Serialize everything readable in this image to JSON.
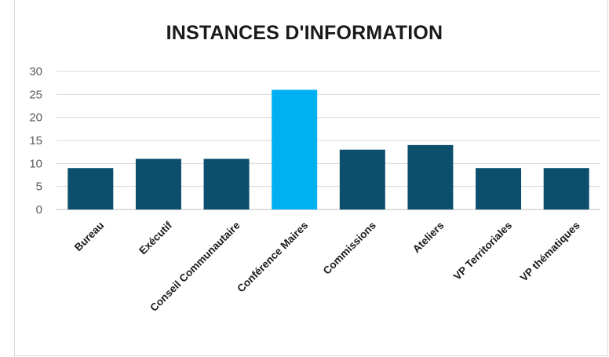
{
  "chart_data": {
    "type": "bar",
    "title": "INSTANCES D'INFORMATION",
    "categories": [
      "Bureau",
      "Exécutif",
      "Conseil Communautaire",
      "Conférence Maires",
      "Commissions",
      "Ateliers",
      "VP Territoriales",
      "VP thématiques"
    ],
    "values": [
      9,
      11,
      11,
      26,
      13,
      14,
      9,
      9
    ],
    "ylim": [
      0,
      30
    ],
    "yticks": [
      "0",
      "5",
      "10",
      "15",
      "20",
      "25",
      "30"
    ],
    "grid": true,
    "legend": "none",
    "colors": {
      "bar": "#0b4f6c",
      "highlight": "#00b0f0",
      "grid": "#d9d9d9",
      "axis": "#bfbfbf"
    },
    "highlight_index": 3
  }
}
